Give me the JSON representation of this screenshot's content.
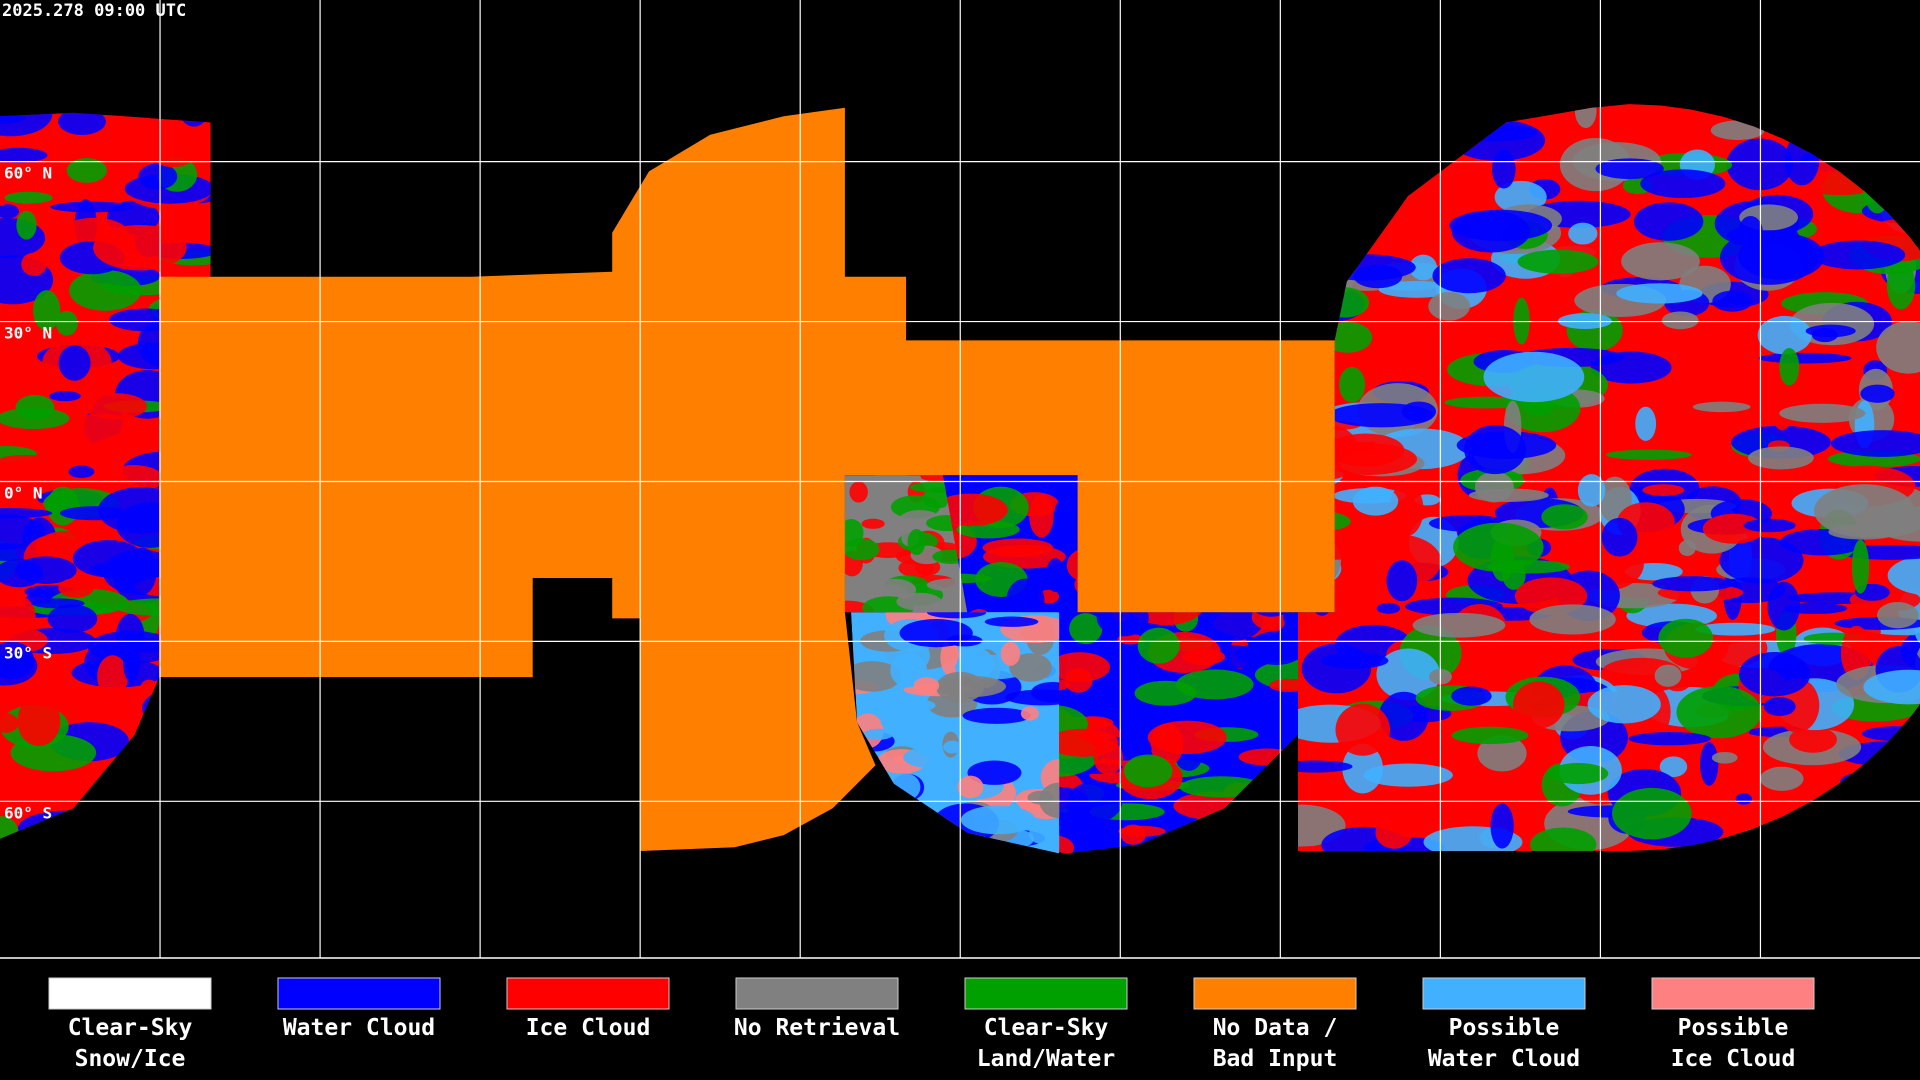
{
  "header": {
    "timestamp": "2025.278 09:00 UTC"
  },
  "map": {
    "lat_labels": [
      "60° N",
      "30° N",
      "0° N",
      "30° S",
      "60° S"
    ]
  },
  "legend": [
    {
      "label": [
        "Clear-Sky",
        "Snow/Ice"
      ],
      "color": "#ffffff"
    },
    {
      "label": [
        "Water Cloud"
      ],
      "color": "#0000ff"
    },
    {
      "label": [
        "Ice Cloud"
      ],
      "color": "#ff0000"
    },
    {
      "label": [
        "No Retrieval"
      ],
      "color": "#808080"
    },
    {
      "label": [
        "Clear-Sky",
        "Land/Water"
      ],
      "color": "#00a000"
    },
    {
      "label": [
        "No Data /",
        "Bad Input"
      ],
      "color": "#ff8000"
    },
    {
      "label": [
        "Possible",
        "Water Cloud"
      ],
      "color": "#40b0ff"
    },
    {
      "label": [
        "Possible",
        "Ice Cloud"
      ],
      "color": "#ff8080"
    }
  ]
}
